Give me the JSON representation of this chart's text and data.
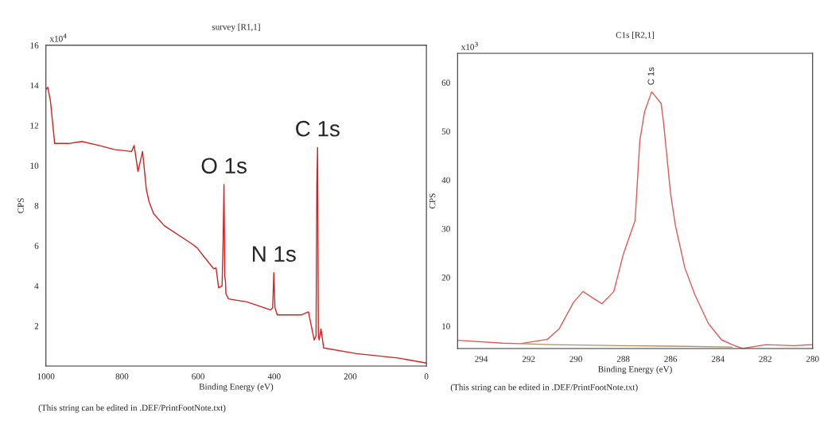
{
  "chart_data": [
    {
      "type": "line",
      "title": "survey [R1,1]",
      "xlabel": "Binding Energy (eV)",
      "ylabel": "CPS",
      "xlim": [
        1000,
        0
      ],
      "xticks": [
        1000,
        800,
        600,
        400,
        200,
        0
      ],
      "ylim": [
        0,
        16
      ],
      "yticks": [
        2,
        4,
        6,
        8,
        10,
        12,
        14,
        16
      ],
      "grid": false,
      "legend": false,
      "annotations": [
        "x10$^{4}$",
        "(This string can be edited in .DEF/PrintFootNote.txt)",
        {
          "text": "O 1s",
          "x": 532,
          "y": 9.05
        },
        {
          "text": "N 1s",
          "x": 401,
          "y": 4.65
        },
        {
          "text": "C 1s",
          "x": 286,
          "y": 10.9
        }
      ],
      "series": [
        {
          "color": "#d42020",
          "x": [
            1000,
            995,
            988,
            977,
            940,
            906,
            860,
            820,
            775,
            768,
            758,
            746,
            736,
            729,
            717,
            689,
            617,
            603,
            559,
            553,
            546,
            537,
            534,
            532,
            530,
            528,
            527,
            520,
            472,
            410,
            404,
            401,
            398,
            392,
            328,
            310,
            295,
            290,
            288,
            286,
            284,
            282,
            277,
            270,
            184,
            75,
            0
          ],
          "values": [
            13.8,
            13.9,
            13.2,
            11.1,
            11.1,
            11.2,
            11.0,
            10.8,
            10.7,
            11.0,
            9.7,
            10.7,
            8.8,
            8.2,
            7.6,
            7.0,
            6.1,
            5.9,
            4.85,
            4.9,
            3.9,
            4.0,
            6.5,
            9.05,
            4.5,
            4.2,
            3.6,
            3.35,
            3.2,
            2.8,
            2.9,
            4.65,
            2.9,
            2.55,
            2.55,
            2.7,
            1.3,
            1.5,
            9.0,
            10.9,
            1.5,
            1.3,
            1.85,
            0.9,
            0.62,
            0.4,
            0.15
          ]
        }
      ]
    },
    {
      "type": "line",
      "title": "C1s [R2,1]",
      "xlabel": "Binding Energy (eV)",
      "ylabel": "CPS",
      "xlim": [
        295,
        280
      ],
      "xticks": [
        294,
        292,
        290,
        288,
        286,
        284,
        282,
        280
      ],
      "ylim": [
        5.4,
        66
      ],
      "yticks": [
        10,
        20,
        30,
        40,
        50,
        60
      ],
      "grid": false,
      "legend": false,
      "annotations": [
        "x10$^{3}$",
        "(This string can be edited in .DEF/PrintFootNote.txt)",
        {
          "text": "C 1s",
          "x": 286.8,
          "y": 58.1
        }
      ],
      "series": [
        {
          "color": "#e05a5a",
          "x": [
            295,
            293.1,
            292.35,
            291.2,
            290.7,
            290.1,
            289.7,
            289.2,
            288.9,
            288.4,
            288.0,
            287.5,
            287.3,
            287.1,
            286.8,
            286.4,
            286.3,
            286.0,
            285.8,
            285.4,
            284.98,
            284.4,
            283.85,
            283.4,
            282.97,
            281.97,
            280.8,
            280
          ],
          "values": [
            7.1,
            6.5,
            6.4,
            7.3,
            9.5,
            14.9,
            17.1,
            15.5,
            14.6,
            17.1,
            24.7,
            31.7,
            48.1,
            54.0,
            58.1,
            55.7,
            51.9,
            37.2,
            30.7,
            22.0,
            16.5,
            10.5,
            7.2,
            6.2,
            5.4,
            6.2,
            6.0,
            6.2
          ]
        },
        {
          "color": "#b09060",
          "x": [
            292.3,
            291.0,
            288.2,
            286.0,
            283.4
          ],
          "values": [
            6.4,
            6.2,
            6.0,
            5.9,
            5.7
          ]
        }
      ]
    }
  ]
}
